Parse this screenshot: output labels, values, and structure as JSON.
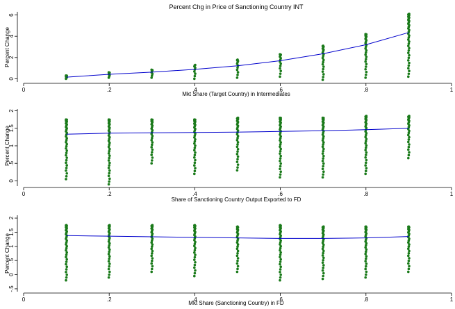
{
  "chart_data": [
    {
      "type": "scatter",
      "title": "Percent Chg in Price of Sanctioning Country INT",
      "xlabel": "Mkt Share (Target Country) in Intermediates",
      "ylabel": "Percent Change",
      "xlim": [
        0,
        1
      ],
      "ylim": [
        -0.3,
        6.3
      ],
      "xticks": [
        0,
        0.2,
        0.4,
        0.6,
        0.8,
        1
      ],
      "xtick_labels": [
        "0",
        ".2",
        ".4",
        ".6",
        ".8",
        "1"
      ],
      "yticks": [
        0,
        2,
        4,
        6
      ],
      "ytick_labels": [
        "0",
        "2",
        "4",
        "6"
      ],
      "grid": false,
      "series": [
        {
          "kind": "scatter",
          "color": "#1a7a1a",
          "x_values": [
            0.1,
            0.2,
            0.3,
            0.4,
            0.5,
            0.6,
            0.7,
            0.8,
            0.9
          ],
          "y_ranges": [
            [
              0.0,
              0.3
            ],
            [
              0.1,
              0.6
            ],
            [
              0.1,
              0.85
            ],
            [
              0.0,
              1.3
            ],
            [
              0.1,
              1.8
            ],
            [
              0.2,
              2.3
            ],
            [
              -0.1,
              3.1
            ],
            [
              0.1,
              4.2
            ],
            [
              0.2,
              6.1
            ]
          ]
        },
        {
          "kind": "line",
          "color": "#0000cc",
          "x": [
            0.1,
            0.2,
            0.3,
            0.4,
            0.5,
            0.6,
            0.7,
            0.8,
            0.9
          ],
          "y": [
            0.15,
            0.42,
            0.62,
            0.88,
            1.22,
            1.7,
            2.35,
            3.2,
            4.35
          ]
        }
      ]
    },
    {
      "type": "scatter",
      "title": "",
      "xlabel": "Share of Sanctioning Country Output Exported to FD",
      "ylabel": "Percent Change",
      "xlim": [
        0,
        1
      ],
      "ylim": [
        -0.15,
        2.05
      ],
      "xticks": [
        0,
        0.2,
        0.4,
        0.6,
        0.8,
        1
      ],
      "xtick_labels": [
        "0",
        ".2",
        ".4",
        ".6",
        ".8",
        "1"
      ],
      "yticks": [
        0,
        0.5,
        1,
        1.5,
        2
      ],
      "ytick_labels": [
        "0",
        ".5",
        "1",
        "1.5",
        "2"
      ],
      "grid": false,
      "series": [
        {
          "kind": "scatter",
          "color": "#1a7a1a",
          "x_values": [
            0.1,
            0.2,
            0.3,
            0.4,
            0.5,
            0.6,
            0.7,
            0.8,
            0.9
          ],
          "y_ranges": [
            [
              0.05,
              1.75
            ],
            [
              -0.1,
              1.75
            ],
            [
              0.5,
              1.75
            ],
            [
              0.2,
              1.75
            ],
            [
              0.3,
              1.8
            ],
            [
              0.1,
              1.8
            ],
            [
              0.1,
              1.8
            ],
            [
              0.2,
              1.85
            ],
            [
              0.65,
              1.85
            ]
          ]
        },
        {
          "kind": "line",
          "color": "#0000cc",
          "x": [
            0.1,
            0.2,
            0.3,
            0.4,
            0.5,
            0.6,
            0.7,
            0.8,
            0.9
          ],
          "y": [
            1.33,
            1.36,
            1.37,
            1.38,
            1.39,
            1.41,
            1.43,
            1.46,
            1.5
          ]
        }
      ]
    },
    {
      "type": "scatter",
      "title": "",
      "xlabel": "Mkt Share (Sanctioning Country) in FD",
      "ylabel": "Percent Change",
      "xlim": [
        0,
        1
      ],
      "ylim": [
        -0.6,
        2.1
      ],
      "xticks": [
        0,
        0.2,
        0.4,
        0.6,
        0.8,
        1
      ],
      "xtick_labels": [
        "0",
        ".2",
        ".4",
        ".6",
        ".8",
        "1"
      ],
      "yticks": [
        -0.5,
        0,
        0.5,
        1,
        1.5,
        2
      ],
      "ytick_labels": [
        "-.5",
        "0",
        ".5",
        "1",
        "1.5",
        "2"
      ],
      "grid": false,
      "series": [
        {
          "kind": "scatter",
          "color": "#1a7a1a",
          "x_values": [
            0.1,
            0.2,
            0.3,
            0.4,
            0.5,
            0.6,
            0.7,
            0.8,
            0.9
          ],
          "y_ranges": [
            [
              -0.2,
              1.75
            ],
            [
              -0.1,
              1.75
            ],
            [
              0.1,
              1.75
            ],
            [
              -0.05,
              1.75
            ],
            [
              0.1,
              1.7
            ],
            [
              -0.2,
              1.75
            ],
            [
              -0.15,
              1.7
            ],
            [
              -0.1,
              1.7
            ],
            [
              0.1,
              1.7
            ]
          ]
        },
        {
          "kind": "line",
          "color": "#0000cc",
          "x": [
            0.1,
            0.2,
            0.3,
            0.4,
            0.5,
            0.6,
            0.7,
            0.8,
            0.9
          ],
          "y": [
            1.38,
            1.36,
            1.34,
            1.32,
            1.3,
            1.28,
            1.28,
            1.3,
            1.35
          ]
        }
      ]
    }
  ]
}
